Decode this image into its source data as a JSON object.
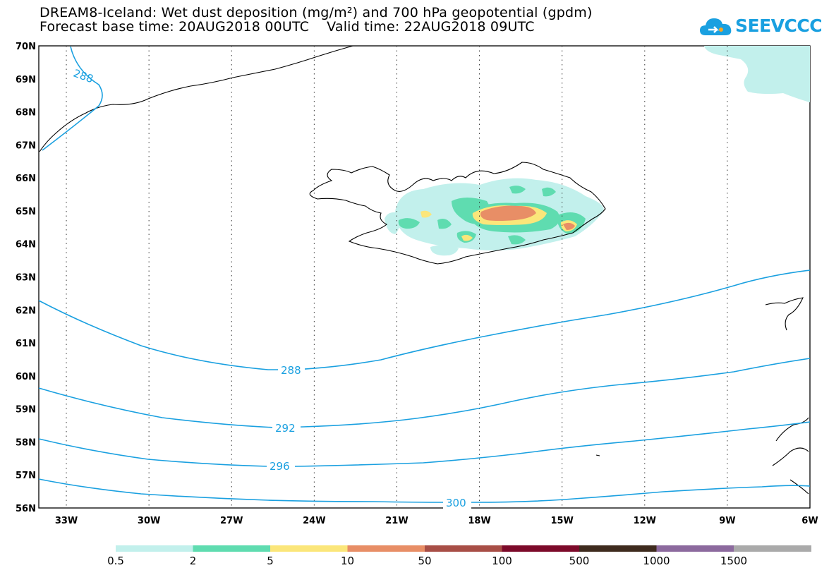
{
  "title": {
    "line1": "DREAM8-Iceland: Wet dust deposition (mg/m²) and 700 hPa geopotential (gpdm)",
    "line2": "Forecast base time: 20AUG2018 00UTC    Valid time: 22AUG2018 09UTC"
  },
  "logo": {
    "text": "SEEVCCC",
    "color": "#1aa0e0"
  },
  "map": {
    "lon_range": [
      -34.0,
      -6.0
    ],
    "lat_range": [
      56.0,
      70.0
    ],
    "x_ticks": [
      "33W",
      "30W",
      "27W",
      "24W",
      "21W",
      "18W",
      "15W",
      "12W",
      "9W",
      "6W"
    ],
    "y_ticks": [
      "56N",
      "57N",
      "58N",
      "59N",
      "60N",
      "61N",
      "62N",
      "63N",
      "64N",
      "65N",
      "66N",
      "67N",
      "68N",
      "69N",
      "70N"
    ],
    "grid": "dotted"
  },
  "contours": {
    "color": "#1aa0e0",
    "labels": [
      "288",
      "288",
      "292",
      "296",
      "300"
    ]
  },
  "legend": {
    "labels": [
      "0.5",
      "2",
      "5",
      "10",
      "50",
      "100",
      "500",
      "1000",
      "1500"
    ],
    "colors": [
      "#c2f0ec",
      "#5fdcb0",
      "#fbe67a",
      "#e88e66",
      "#a84e46",
      "#7c0a2a",
      "#3e2b1e",
      "#8c6a9e",
      "#aaaaaa"
    ]
  }
}
